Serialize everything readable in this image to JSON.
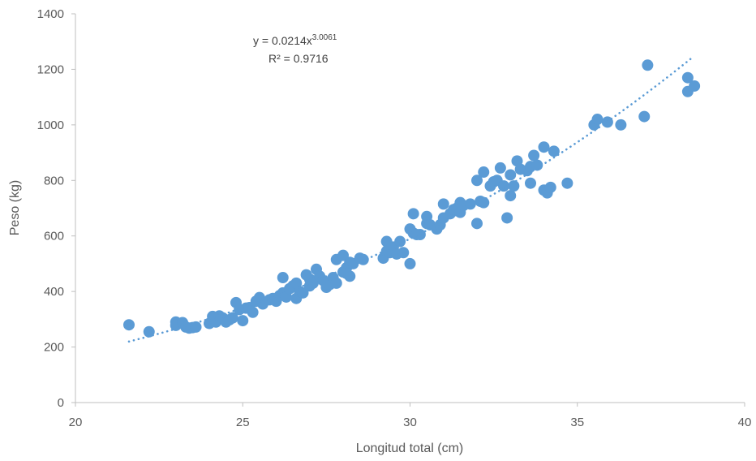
{
  "chart_data": {
    "type": "scatter",
    "xlabel": "Longitud total (cm)",
    "ylabel": "Peso (kg)",
    "xlim": [
      20,
      40
    ],
    "ylim": [
      0,
      1400
    ],
    "xticks": [
      20,
      25,
      30,
      35,
      40
    ],
    "yticks": [
      0,
      200,
      400,
      600,
      800,
      1000,
      1200,
      1400
    ],
    "grid": false,
    "legend": "none",
    "marker_color": "#5b9bd5",
    "trendline": {
      "type": "power",
      "a": 0.0214,
      "b": 3.0061,
      "x_range": [
        21.6,
        38.4
      ],
      "style": "dotted",
      "color": "#5b9bd5",
      "equation_base": "y = 0.0214x",
      "equation_exponent": "3.0061",
      "r_squared": "R² = 0.9716"
    },
    "points": [
      [
        21.6,
        280
      ],
      [
        22.2,
        255
      ],
      [
        23.0,
        290
      ],
      [
        23.0,
        278
      ],
      [
        23.2,
        288
      ],
      [
        23.3,
        272
      ],
      [
        23.4,
        268
      ],
      [
        23.5,
        270
      ],
      [
        23.6,
        272
      ],
      [
        24.0,
        285
      ],
      [
        24.1,
        310
      ],
      [
        24.2,
        290
      ],
      [
        24.3,
        312
      ],
      [
        24.4,
        305
      ],
      [
        24.5,
        290
      ],
      [
        24.6,
        298
      ],
      [
        24.7,
        305
      ],
      [
        24.8,
        360
      ],
      [
        24.9,
        335
      ],
      [
        25.0,
        295
      ],
      [
        25.1,
        340
      ],
      [
        25.2,
        342
      ],
      [
        25.3,
        325
      ],
      [
        25.4,
        365
      ],
      [
        25.5,
        378
      ],
      [
        25.6,
        355
      ],
      [
        25.8,
        370
      ],
      [
        25.9,
        375
      ],
      [
        26.0,
        365
      ],
      [
        26.1,
        385
      ],
      [
        26.2,
        450
      ],
      [
        26.2,
        395
      ],
      [
        26.3,
        380
      ],
      [
        26.4,
        410
      ],
      [
        26.5,
        420
      ],
      [
        26.6,
        430
      ],
      [
        26.6,
        375
      ],
      [
        26.7,
        400
      ],
      [
        26.8,
        395
      ],
      [
        26.9,
        460
      ],
      [
        27.0,
        445
      ],
      [
        27.0,
        420
      ],
      [
        27.1,
        430
      ],
      [
        27.2,
        480
      ],
      [
        27.3,
        455
      ],
      [
        27.4,
        440
      ],
      [
        27.5,
        415
      ],
      [
        27.6,
        425
      ],
      [
        27.7,
        450
      ],
      [
        27.8,
        430
      ],
      [
        27.8,
        515
      ],
      [
        28.0,
        530
      ],
      [
        28.0,
        470
      ],
      [
        28.1,
        485
      ],
      [
        28.1,
        465
      ],
      [
        28.2,
        505
      ],
      [
        28.2,
        455
      ],
      [
        28.3,
        500
      ],
      [
        28.5,
        520
      ],
      [
        28.6,
        515
      ],
      [
        29.2,
        520
      ],
      [
        29.3,
        580
      ],
      [
        29.3,
        545
      ],
      [
        29.4,
        540
      ],
      [
        29.5,
        560
      ],
      [
        29.6,
        535
      ],
      [
        29.7,
        580
      ],
      [
        29.8,
        540
      ],
      [
        30.0,
        500
      ],
      [
        30.0,
        625
      ],
      [
        30.1,
        680
      ],
      [
        30.1,
        610
      ],
      [
        30.2,
        605
      ],
      [
        30.3,
        605
      ],
      [
        30.5,
        670
      ],
      [
        30.5,
        645
      ],
      [
        30.6,
        640
      ],
      [
        30.8,
        625
      ],
      [
        30.9,
        640
      ],
      [
        31.0,
        665
      ],
      [
        31.0,
        715
      ],
      [
        31.2,
        680
      ],
      [
        31.3,
        695
      ],
      [
        31.4,
        700
      ],
      [
        31.5,
        720
      ],
      [
        31.5,
        685
      ],
      [
        31.6,
        710
      ],
      [
        31.8,
        715
      ],
      [
        32.0,
        645
      ],
      [
        32.0,
        800
      ],
      [
        32.1,
        725
      ],
      [
        32.2,
        830
      ],
      [
        32.2,
        720
      ],
      [
        32.4,
        780
      ],
      [
        32.5,
        795
      ],
      [
        32.6,
        800
      ],
      [
        32.7,
        845
      ],
      [
        32.8,
        780
      ],
      [
        32.9,
        665
      ],
      [
        33.0,
        745
      ],
      [
        33.0,
        820
      ],
      [
        33.1,
        780
      ],
      [
        33.2,
        870
      ],
      [
        33.3,
        840
      ],
      [
        33.5,
        835
      ],
      [
        33.6,
        850
      ],
      [
        33.6,
        790
      ],
      [
        33.7,
        890
      ],
      [
        33.8,
        855
      ],
      [
        34.0,
        920
      ],
      [
        34.0,
        765
      ],
      [
        34.1,
        755
      ],
      [
        34.2,
        775
      ],
      [
        34.3,
        905
      ],
      [
        34.7,
        790
      ],
      [
        35.5,
        1000
      ],
      [
        35.6,
        1020
      ],
      [
        35.9,
        1010
      ],
      [
        36.3,
        1000
      ],
      [
        37.0,
        1030
      ],
      [
        37.1,
        1215
      ],
      [
        38.3,
        1170
      ],
      [
        38.3,
        1120
      ],
      [
        38.5,
        1140
      ]
    ]
  }
}
